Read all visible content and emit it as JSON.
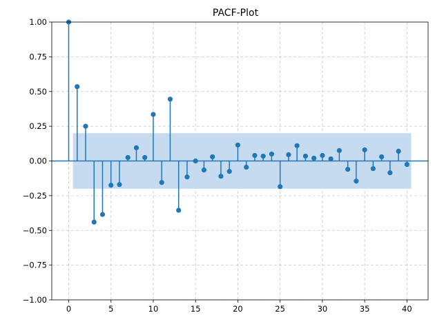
{
  "chart_data": {
    "type": "stem",
    "title": "PACF-Plot",
    "xlabel": "",
    "ylabel": "",
    "xlim": [
      -2,
      42.5
    ],
    "ylim": [
      -1.0,
      1.0
    ],
    "xticks": [
      0,
      5,
      10,
      15,
      20,
      25,
      30,
      35,
      40
    ],
    "yticks": [
      -1.0,
      -0.75,
      -0.5,
      -0.25,
      0.0,
      0.25,
      0.5,
      0.75,
      1.0
    ],
    "ytick_labels": [
      "−1.00",
      "−0.75",
      "−0.50",
      "−0.25",
      "0.00",
      "0.25",
      "0.50",
      "0.75",
      "1.00"
    ],
    "grid": true,
    "confidence_band": {
      "lower": -0.2,
      "upper": 0.2,
      "x_range": [
        0.5,
        40.5
      ],
      "color": "#c6dbef"
    },
    "color": "#1f77b4",
    "x": [
      0,
      1,
      2,
      3,
      4,
      5,
      6,
      7,
      8,
      9,
      10,
      11,
      12,
      13,
      14,
      15,
      16,
      17,
      18,
      19,
      20,
      21,
      22,
      23,
      24,
      25,
      26,
      27,
      28,
      29,
      30,
      31,
      32,
      33,
      34,
      35,
      36,
      37,
      38,
      39,
      40
    ],
    "values": [
      1.0,
      0.535,
      0.25,
      -0.44,
      -0.385,
      -0.175,
      -0.17,
      0.025,
      0.095,
      0.025,
      0.335,
      -0.155,
      0.445,
      -0.355,
      -0.115,
      0.0,
      -0.065,
      0.03,
      -0.11,
      -0.075,
      0.115,
      -0.045,
      0.04,
      0.035,
      0.05,
      -0.185,
      0.045,
      0.11,
      0.035,
      0.02,
      0.04,
      0.015,
      0.075,
      -0.06,
      -0.145,
      0.08,
      -0.055,
      0.03,
      -0.085,
      0.07,
      -0.025
    ]
  }
}
